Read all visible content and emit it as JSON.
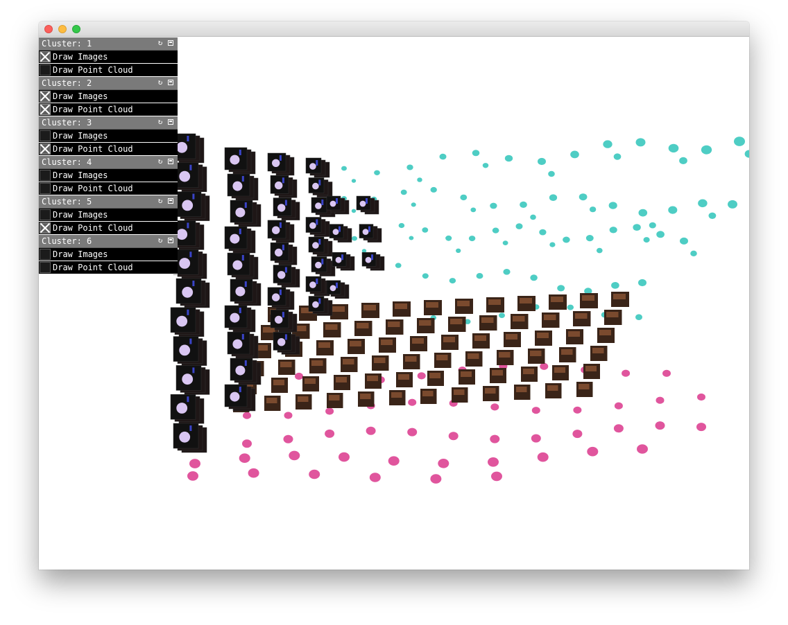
{
  "colors": {
    "gui_header": "#7a7a7a",
    "gui_row": "#000000",
    "teal_points": "#4ecdc4",
    "pink_points": "#e0559d",
    "image_tile": "#1a1010",
    "image_blob": "#d9c6f2"
  },
  "clusters": [
    {
      "label": "Cluster: 1",
      "refresh_icon": "refresh-icon",
      "save_icon": "save-icon",
      "draw_images": {
        "label": "Draw Images",
        "checked": true
      },
      "draw_point_cloud": {
        "label": "Draw Point Cloud",
        "checked": false
      }
    },
    {
      "label": "Cluster: 2",
      "refresh_icon": "refresh-icon",
      "save_icon": "save-icon",
      "draw_images": {
        "label": "Draw Images",
        "checked": true
      },
      "draw_point_cloud": {
        "label": "Draw Point Cloud",
        "checked": true
      }
    },
    {
      "label": "Cluster: 3",
      "refresh_icon": "refresh-icon",
      "save_icon": "save-icon",
      "draw_images": {
        "label": "Draw Images",
        "checked": false
      },
      "draw_point_cloud": {
        "label": "Draw Point Cloud",
        "checked": true
      }
    },
    {
      "label": "Cluster: 4",
      "refresh_icon": "refresh-icon",
      "save_icon": "save-icon",
      "draw_images": {
        "label": "Draw Images",
        "checked": false
      },
      "draw_point_cloud": {
        "label": "Draw Point Cloud",
        "checked": false
      }
    },
    {
      "label": "Cluster: 5",
      "refresh_icon": "refresh-icon",
      "save_icon": "save-icon",
      "draw_images": {
        "label": "Draw Images",
        "checked": false
      },
      "draw_point_cloud": {
        "label": "Draw Point Cloud",
        "checked": true
      }
    },
    {
      "label": "Cluster: 6",
      "refresh_icon": "refresh-icon",
      "save_icon": "save-icon",
      "draw_images": {
        "label": "Draw Images",
        "checked": false
      },
      "draw_point_cloud": {
        "label": "Draw Point Cloud",
        "checked": false
      }
    }
  ]
}
